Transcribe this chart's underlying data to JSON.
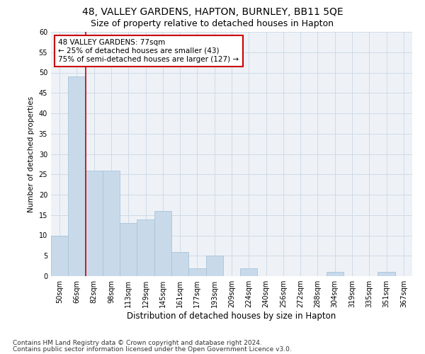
{
  "title1": "48, VALLEY GARDENS, HAPTON, BURNLEY, BB11 5QE",
  "title2": "Size of property relative to detached houses in Hapton",
  "xlabel": "Distribution of detached houses by size in Hapton",
  "ylabel": "Number of detached properties",
  "footnote1": "Contains HM Land Registry data © Crown copyright and database right 2024.",
  "footnote2": "Contains public sector information licensed under the Open Government Licence v3.0.",
  "annotation_line1": "48 VALLEY GARDENS: 77sqm",
  "annotation_line2": "← 25% of detached houses are smaller (43)",
  "annotation_line3": "75% of semi-detached houses are larger (127) →",
  "bar_labels": [
    "50sqm",
    "66sqm",
    "82sqm",
    "98sqm",
    "113sqm",
    "129sqm",
    "145sqm",
    "161sqm",
    "177sqm",
    "193sqm",
    "209sqm",
    "224sqm",
    "240sqm",
    "256sqm",
    "272sqm",
    "288sqm",
    "304sqm",
    "319sqm",
    "335sqm",
    "351sqm",
    "367sqm"
  ],
  "bar_values": [
    10,
    49,
    26,
    26,
    13,
    14,
    16,
    6,
    2,
    5,
    0,
    2,
    0,
    0,
    0,
    0,
    1,
    0,
    0,
    1,
    0
  ],
  "bar_color": "#c8daea",
  "bar_edge_color": "#a8c4d8",
  "vline_x": 1.5,
  "vline_color": "#cc0000",
  "ylim": [
    0,
    60
  ],
  "yticks": [
    0,
    5,
    10,
    15,
    20,
    25,
    30,
    35,
    40,
    45,
    50,
    55,
    60
  ],
  "grid_color": "#d0dae6",
  "annotation_box_color": "#cc0000",
  "bg_color": "#eef2f7",
  "title1_fontsize": 10,
  "title2_fontsize": 9,
  "annotation_fontsize": 7.5,
  "axis_fontsize": 7,
  "xlabel_fontsize": 8.5,
  "ylabel_fontsize": 7.5,
  "footnote_fontsize": 6.5
}
